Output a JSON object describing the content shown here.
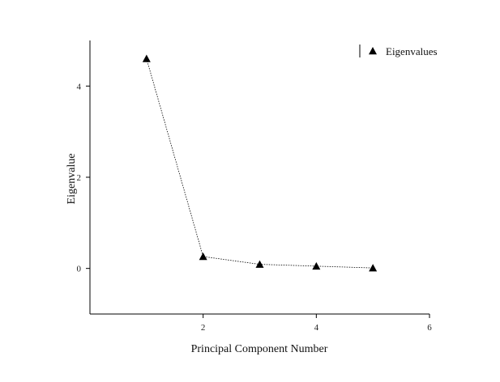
{
  "chart_data": {
    "type": "line",
    "xlabel": "Principal Component Number",
    "ylabel": "Eigenvalue",
    "xlim": [
      0,
      6
    ],
    "ylim": [
      -1,
      5
    ],
    "xticks": [
      2,
      4,
      6
    ],
    "yticks": [
      0,
      2,
      4
    ],
    "grid": false,
    "legend_position": "top-right",
    "series": [
      {
        "name": "Eigenvalues",
        "marker": "triangle",
        "line_style": "dotted",
        "color": "#000000",
        "x": [
          1,
          2,
          3,
          4,
          5
        ],
        "y": [
          4.6,
          0.26,
          0.09,
          0.05,
          0.01
        ]
      }
    ]
  }
}
